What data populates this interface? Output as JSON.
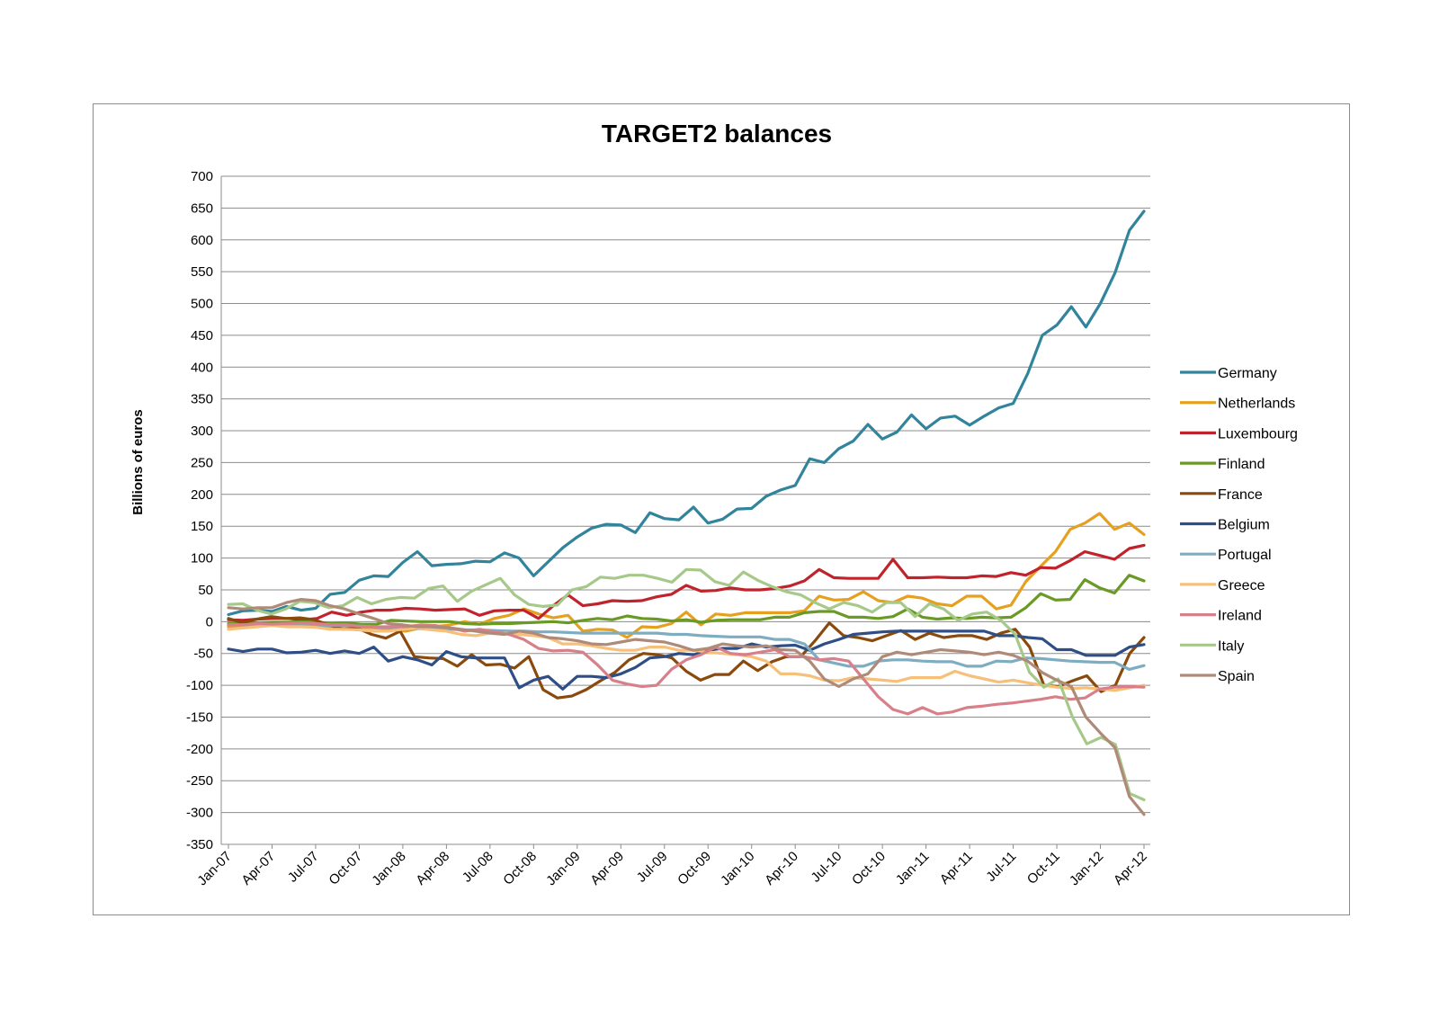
{
  "chart_data": {
    "type": "line",
    "title": "TARGET2 balances",
    "xlabel": "",
    "ylabel": "Billions of euros",
    "ylim": [
      -350,
      700
    ],
    "yticks": [
      700,
      650,
      600,
      550,
      500,
      450,
      400,
      350,
      300,
      250,
      200,
      150,
      100,
      50,
      0,
      -50,
      -100,
      -150,
      -200,
      -250,
      -300,
      -350
    ],
    "grid": true,
    "legend_position": "right",
    "x_tick_labels": [
      "Jan-07",
      "Apr-07",
      "Jul-07",
      "Oct-07",
      "Jan-08",
      "Apr-08",
      "Jul-08",
      "Oct-08",
      "Jan-09",
      "Apr-09",
      "Jul-09",
      "Oct-09",
      "Jan-10",
      "Apr-10",
      "Jul-10",
      "Oct-10",
      "Jan-11",
      "Apr-11",
      "Jul-11",
      "Oct-11",
      "Jan-12",
      "Apr-12"
    ],
    "x_start": "Jan-07",
    "x_end": "Apr-12",
    "series": [
      {
        "name": "Germany",
        "color": "#31849b",
        "values": [
          11,
          17,
          18,
          16,
          24,
          18,
          21,
          43,
          46,
          65,
          72,
          71,
          93,
          110,
          88,
          90,
          91,
          95,
          94,
          108,
          100,
          72,
          94,
          116,
          133,
          147,
          153,
          152,
          140,
          171,
          162,
          160,
          180,
          155,
          161,
          177,
          178,
          197,
          207,
          214,
          256,
          250,
          272,
          284,
          310,
          287,
          298,
          325,
          303,
          320,
          323,
          309,
          323,
          336,
          343,
          390,
          450,
          466,
          495,
          463,
          500,
          548,
          615,
          645
        ]
      },
      {
        "name": "Netherlands",
        "color": "#e5a020",
        "values": [
          -8,
          -7,
          -6,
          -5,
          -5,
          -6,
          -6,
          -8,
          -10,
          -9,
          -10,
          -12,
          -15,
          -10,
          -8,
          -5,
          0,
          -4,
          5,
          10,
          20,
          12,
          6,
          10,
          -15,
          -12,
          -13,
          -25,
          -8,
          -9,
          -3,
          15,
          -5,
          12,
          10,
          14,
          14,
          14,
          14,
          17,
          40,
          34,
          35,
          47,
          33,
          30,
          40,
          37,
          28,
          25,
          40,
          40,
          20,
          26,
          63,
          87,
          110,
          145,
          155,
          170,
          145,
          155,
          137
        ]
      },
      {
        "name": "Luxembourg",
        "color": "#c0232c",
        "values": [
          3,
          2,
          4,
          5,
          5,
          3,
          5,
          15,
          10,
          15,
          18,
          18,
          21,
          20,
          18,
          19,
          20,
          10,
          17,
          18,
          18,
          5,
          25,
          42,
          25,
          28,
          33,
          32,
          33,
          39,
          43,
          57,
          48,
          49,
          53,
          50,
          50,
          52,
          56,
          64,
          82,
          69,
          68,
          68,
          68,
          98,
          69,
          69,
          70,
          69,
          69,
          72,
          71,
          77,
          73,
          85,
          84,
          96,
          110,
          104,
          98,
          115,
          120
        ]
      },
      {
        "name": "Finland",
        "color": "#6a9a25",
        "values": [
          -3,
          -2,
          -2,
          -1,
          -1,
          0,
          -1,
          -3,
          -2,
          -4,
          -4,
          2,
          1,
          0,
          0,
          0,
          -3,
          -4,
          -3,
          -3,
          -2,
          -1,
          0,
          -2,
          2,
          5,
          3,
          9,
          5,
          4,
          1,
          3,
          -1,
          2,
          3,
          3,
          3,
          7,
          7,
          14,
          16,
          16,
          7,
          7,
          5,
          8,
          20,
          7,
          4,
          6,
          5,
          7,
          6,
          7,
          22,
          44,
          34,
          35,
          66,
          53,
          45,
          73,
          64
        ]
      },
      {
        "name": "France",
        "color": "#8a4a0d",
        "values": [
          5,
          -2,
          4,
          8,
          5,
          6,
          3,
          -5,
          -12,
          -10,
          -20,
          -26,
          -15,
          -55,
          -57,
          -58,
          -70,
          -52,
          -68,
          -67,
          -73,
          -55,
          -107,
          -120,
          -117,
          -107,
          -93,
          -80,
          -60,
          -50,
          -52,
          -57,
          -78,
          -92,
          -83,
          -83,
          -62,
          -77,
          -63,
          -55,
          -55,
          -30,
          -2,
          -22,
          -25,
          -30,
          -22,
          -14,
          -28,
          -18,
          -25,
          -22,
          -22,
          -28,
          -18,
          -12,
          -40,
          -100,
          -102,
          -93,
          -85,
          -110,
          -100,
          -50,
          -25
        ]
      },
      {
        "name": "Belgium",
        "color": "#2e4e85",
        "values": [
          -43,
          -47,
          -43,
          -43,
          -49,
          -48,
          -45,
          -50,
          -46,
          -50,
          -40,
          -62,
          -55,
          -60,
          -68,
          -47,
          -55,
          -57,
          -57,
          -57,
          -104,
          -92,
          -86,
          -106,
          -86,
          -86,
          -88,
          -82,
          -72,
          -57,
          -55,
          -50,
          -52,
          -45,
          -42,
          -42,
          -35,
          -40,
          -38,
          -37,
          -45,
          -35,
          -28,
          -20,
          -18,
          -16,
          -15,
          -15,
          -15,
          -15,
          -15,
          -15,
          -15,
          -22,
          -22,
          -25,
          -27,
          -44,
          -44,
          -53,
          -53,
          -53,
          -40,
          -36
        ]
      },
      {
        "name": "Portugal",
        "color": "#7eacc0",
        "values": [
          -5,
          -5,
          -5,
          -5,
          -5,
          -5,
          -5,
          -6,
          -6,
          -7,
          -8,
          -10,
          -10,
          -11,
          -12,
          -12,
          -13,
          -13,
          -14,
          -15,
          -15,
          -16,
          -16,
          -17,
          -18,
          -18,
          -18,
          -18,
          -18,
          -18,
          -20,
          -20,
          -22,
          -23,
          -24,
          -24,
          -24,
          -28,
          -28,
          -35,
          -60,
          -65,
          -70,
          -70,
          -62,
          -60,
          -60,
          -62,
          -63,
          -63,
          -70,
          -70,
          -62,
          -63,
          -57,
          -58,
          -60,
          -62,
          -63,
          -64,
          -64,
          -75,
          -69
        ]
      },
      {
        "name": "Greece",
        "color": "#f6c07a",
        "values": [
          -12,
          -10,
          -8,
          -6,
          -8,
          -8,
          -9,
          -12,
          -12,
          -13,
          -15,
          -15,
          -12,
          -10,
          -13,
          -15,
          -20,
          -22,
          -18,
          -18,
          -20,
          -22,
          -25,
          -35,
          -35,
          -38,
          -42,
          -45,
          -45,
          -40,
          -40,
          -45,
          -45,
          -48,
          -50,
          -52,
          -55,
          -62,
          -82,
          -82,
          -85,
          -92,
          -93,
          -88,
          -90,
          -92,
          -94,
          -88,
          -88,
          -88,
          -78,
          -85,
          -90,
          -95,
          -92,
          -96,
          -100,
          -103,
          -105,
          -104,
          -106,
          -108,
          -104,
          -100
        ]
      },
      {
        "name": "Ireland",
        "color": "#d8808a",
        "values": [
          -5,
          -5,
          -3,
          -4,
          -3,
          -2,
          -3,
          -5,
          -5,
          -8,
          -8,
          -8,
          -8,
          -5,
          -6,
          -10,
          -15,
          -12,
          -16,
          -20,
          -28,
          -42,
          -46,
          -45,
          -48,
          -68,
          -92,
          -98,
          -102,
          -100,
          -75,
          -60,
          -52,
          -40,
          -50,
          -52,
          -48,
          -44,
          -55,
          -55,
          -60,
          -58,
          -62,
          -90,
          -118,
          -138,
          -145,
          -135,
          -145,
          -142,
          -135,
          -133,
          -130,
          -128,
          -125,
          -122,
          -118,
          -122,
          -120,
          -106,
          -103,
          -102,
          -103
        ]
      },
      {
        "name": "Italy",
        "color": "#a6c98a",
        "values": [
          27,
          28,
          18,
          12,
          20,
          32,
          30,
          22,
          25,
          38,
          28,
          35,
          38,
          37,
          52,
          56,
          32,
          48,
          58,
          68,
          42,
          27,
          24,
          26,
          50,
          55,
          70,
          68,
          73,
          73,
          68,
          62,
          82,
          81,
          63,
          57,
          78,
          65,
          55,
          47,
          42,
          30,
          20,
          30,
          25,
          15,
          30,
          30,
          8,
          28,
          20,
          2,
          12,
          15,
          2,
          -20,
          -80,
          -103,
          -90,
          -150,
          -192,
          -182,
          -193,
          -270,
          -280
        ]
      },
      {
        "name": "Spain",
        "color": "#b08a78",
        "values": [
          22,
          20,
          22,
          22,
          30,
          35,
          33,
          25,
          20,
          12,
          5,
          -3,
          -5,
          -8,
          -8,
          -9,
          -12,
          -15,
          -18,
          -20,
          -15,
          -18,
          -25,
          -27,
          -30,
          -35,
          -36,
          -32,
          -28,
          -30,
          -32,
          -38,
          -45,
          -42,
          -35,
          -38,
          -40,
          -38,
          -44,
          -45,
          -62,
          -90,
          -102,
          -90,
          -82,
          -55,
          -48,
          -52,
          -48,
          -44,
          -46,
          -48,
          -52,
          -48,
          -53,
          -62,
          -80,
          -92,
          -102,
          -150,
          -175,
          -198,
          -275,
          -303
        ]
      }
    ]
  }
}
